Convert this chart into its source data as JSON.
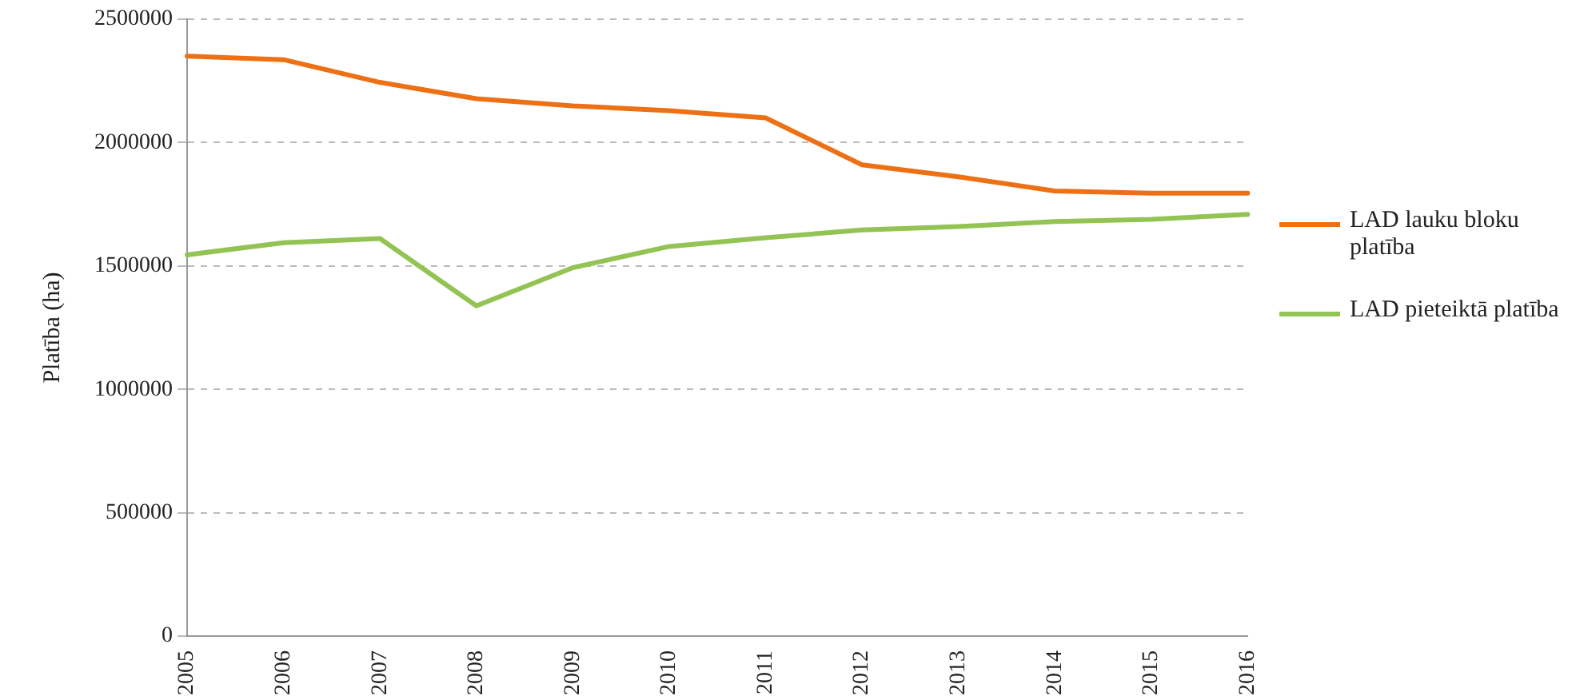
{
  "chart_data": {
    "type": "line",
    "ylabel": "Platība (ha)",
    "categories": [
      "2005",
      "2006",
      "2007",
      "2008",
      "2009",
      "2010",
      "2011",
      "2012",
      "2013",
      "2014",
      "2015",
      "2016"
    ],
    "series": [
      {
        "name": "LAD lauku bloku platība",
        "color": "#ee7014",
        "values": [
          2350000,
          2336000,
          2244000,
          2178000,
          2149000,
          2129000,
          2100000,
          1910000,
          1861000,
          1804000,
          1795000,
          1795000
        ]
      },
      {
        "name": "LAD pieteiktā platība",
        "color": "#92c353",
        "values": [
          1545000,
          1594000,
          1611000,
          1338000,
          1493000,
          1579000,
          1614000,
          1646000,
          1660000,
          1680000,
          1689000,
          1709000
        ]
      }
    ],
    "ylim": [
      0,
      2500000
    ],
    "yticks": [
      0,
      500000,
      1000000,
      1500000,
      2000000,
      2500000
    ],
    "grid": "y",
    "legend": "right",
    "marker": "none",
    "line_style": "solid"
  }
}
